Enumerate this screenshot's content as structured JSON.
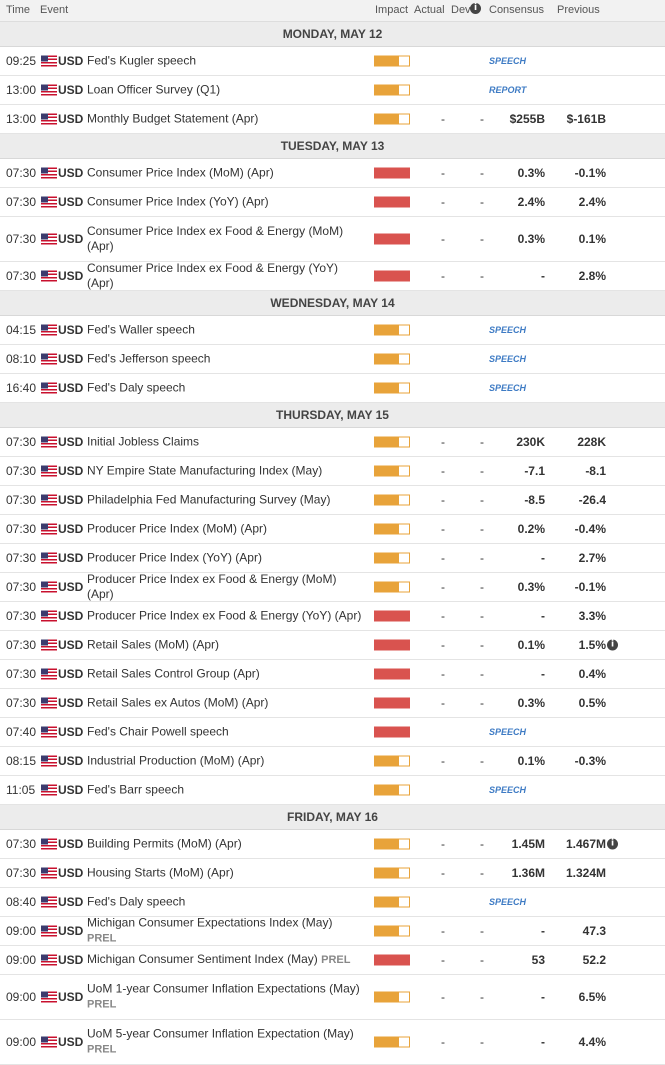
{
  "header": {
    "time": "Time",
    "event": "Event",
    "impact": "Impact",
    "actual": "Actual",
    "dev": "Dev",
    "consensus": "Consensus",
    "previous": "Previous"
  },
  "colors": {
    "impact_medium": "#e8a33a",
    "impact_high": "#d9534f",
    "tag": "#3e7bc4"
  },
  "days": [
    {
      "label": "MONDAY, MAY 12",
      "rows": [
        {
          "time": "09:25",
          "currency": "USD",
          "event": "Fed's Kugler speech",
          "impact": "medium",
          "tag": "SPEECH"
        },
        {
          "time": "13:00",
          "currency": "USD",
          "event": "Loan Officer Survey (Q1)",
          "impact": "medium",
          "tag": "REPORT"
        },
        {
          "time": "13:00",
          "currency": "USD",
          "event": "Monthly Budget Statement (Apr)",
          "impact": "medium",
          "actual": "-",
          "dev": "-",
          "consensus": "$255B",
          "previous": "$-161B"
        }
      ]
    },
    {
      "label": "TUESDAY, MAY 13",
      "rows": [
        {
          "time": "07:30",
          "currency": "USD",
          "event": "Consumer Price Index (MoM) (Apr)",
          "impact": "high",
          "actual": "-",
          "dev": "-",
          "consensus": "0.3%",
          "previous": "-0.1%"
        },
        {
          "time": "07:30",
          "currency": "USD",
          "event": "Consumer Price Index (YoY) (Apr)",
          "impact": "high",
          "actual": "-",
          "dev": "-",
          "consensus": "2.4%",
          "previous": "2.4%"
        },
        {
          "time": "07:30",
          "currency": "USD",
          "event": "Consumer Price Index ex Food & Energy (MoM) (Apr)",
          "impact": "high",
          "actual": "-",
          "dev": "-",
          "consensus": "0.3%",
          "previous": "0.1%",
          "tall": true
        },
        {
          "time": "07:30",
          "currency": "USD",
          "event": "Consumer Price Index ex Food & Energy (YoY) (Apr)",
          "impact": "high",
          "actual": "-",
          "dev": "-",
          "consensus": "-",
          "previous": "2.8%"
        }
      ]
    },
    {
      "label": "WEDNESDAY, MAY 14",
      "rows": [
        {
          "time": "04:15",
          "currency": "USD",
          "event": "Fed's Waller speech",
          "impact": "medium",
          "tag": "SPEECH"
        },
        {
          "time": "08:10",
          "currency": "USD",
          "event": "Fed's Jefferson speech",
          "impact": "medium",
          "tag": "SPEECH"
        },
        {
          "time": "16:40",
          "currency": "USD",
          "event": "Fed's Daly speech",
          "impact": "medium",
          "tag": "SPEECH"
        }
      ]
    },
    {
      "label": "THURSDAY, MAY 15",
      "rows": [
        {
          "time": "07:30",
          "currency": "USD",
          "event": "Initial Jobless Claims",
          "impact": "medium",
          "actual": "-",
          "dev": "-",
          "consensus": "230K",
          "previous": "228K"
        },
        {
          "time": "07:30",
          "currency": "USD",
          "event": "NY Empire State Manufacturing Index (May)",
          "impact": "medium",
          "actual": "-",
          "dev": "-",
          "consensus": "-7.1",
          "previous": "-8.1"
        },
        {
          "time": "07:30",
          "currency": "USD",
          "event": "Philadelphia Fed Manufacturing Survey (May)",
          "impact": "medium",
          "actual": "-",
          "dev": "-",
          "consensus": "-8.5",
          "previous": "-26.4"
        },
        {
          "time": "07:30",
          "currency": "USD",
          "event": "Producer Price Index (MoM) (Apr)",
          "impact": "medium",
          "actual": "-",
          "dev": "-",
          "consensus": "0.2%",
          "previous": "-0.4%"
        },
        {
          "time": "07:30",
          "currency": "USD",
          "event": "Producer Price Index (YoY) (Apr)",
          "impact": "medium",
          "actual": "-",
          "dev": "-",
          "consensus": "-",
          "previous": "2.7%"
        },
        {
          "time": "07:30",
          "currency": "USD",
          "event": "Producer Price Index ex Food & Energy (MoM) (Apr)",
          "impact": "medium",
          "actual": "-",
          "dev": "-",
          "consensus": "0.3%",
          "previous": "-0.1%"
        },
        {
          "time": "07:30",
          "currency": "USD",
          "event": "Producer Price Index ex Food & Energy (YoY) (Apr)",
          "impact": "high",
          "actual": "-",
          "dev": "-",
          "consensus": "-",
          "previous": "3.3%"
        },
        {
          "time": "07:30",
          "currency": "USD",
          "event": "Retail Sales (MoM) (Apr)",
          "impact": "high",
          "actual": "-",
          "dev": "-",
          "consensus": "0.1%",
          "previous": "1.5%",
          "revised": true
        },
        {
          "time": "07:30",
          "currency": "USD",
          "event": "Retail Sales Control Group (Apr)",
          "impact": "high",
          "actual": "-",
          "dev": "-",
          "consensus": "-",
          "previous": "0.4%"
        },
        {
          "time": "07:30",
          "currency": "USD",
          "event": "Retail Sales ex Autos (MoM) (Apr)",
          "impact": "high",
          "actual": "-",
          "dev": "-",
          "consensus": "0.3%",
          "previous": "0.5%"
        },
        {
          "time": "07:40",
          "currency": "USD",
          "event": "Fed's Chair Powell speech",
          "impact": "high",
          "tag": "SPEECH"
        },
        {
          "time": "08:15",
          "currency": "USD",
          "event": "Industrial Production (MoM) (Apr)",
          "impact": "medium",
          "actual": "-",
          "dev": "-",
          "consensus": "0.1%",
          "previous": "-0.3%"
        },
        {
          "time": "11:05",
          "currency": "USD",
          "event": "Fed's Barr speech",
          "impact": "medium",
          "tag": "SPEECH"
        }
      ]
    },
    {
      "label": "FRIDAY, MAY 16",
      "rows": [
        {
          "time": "07:30",
          "currency": "USD",
          "event": "Building Permits (MoM) (Apr)",
          "impact": "medium",
          "actual": "-",
          "dev": "-",
          "consensus": "1.45M",
          "previous": "1.467M",
          "revised": true
        },
        {
          "time": "07:30",
          "currency": "USD",
          "event": "Housing Starts (MoM) (Apr)",
          "impact": "medium",
          "actual": "-",
          "dev": "-",
          "consensus": "1.36M",
          "previous": "1.324M"
        },
        {
          "time": "08:40",
          "currency": "USD",
          "event": "Fed's Daly speech",
          "impact": "medium",
          "tag": "SPEECH"
        },
        {
          "time": "09:00",
          "currency": "USD",
          "event": "Michigan Consumer Expectations Index (May)",
          "prel": "PREL",
          "impact": "medium",
          "actual": "-",
          "dev": "-",
          "consensus": "-",
          "previous": "47.3"
        },
        {
          "time": "09:00",
          "currency": "USD",
          "event": "Michigan Consumer Sentiment Index (May)",
          "prel": "PREL",
          "impact": "high",
          "actual": "-",
          "dev": "-",
          "consensus": "53",
          "previous": "52.2"
        },
        {
          "time": "09:00",
          "currency": "USD",
          "event": "UoM 1-year Consumer Inflation Expectations (May)",
          "prel": "PREL",
          "prel_newline": true,
          "impact": "medium",
          "actual": "-",
          "dev": "-",
          "consensus": "-",
          "previous": "6.5%",
          "tall": true
        },
        {
          "time": "09:00",
          "currency": "USD",
          "event": "UoM 5-year Consumer Inflation Expectation (May)",
          "prel": "PREL",
          "prel_newline": true,
          "impact": "medium",
          "actual": "-",
          "dev": "-",
          "consensus": "-",
          "previous": "4.4%",
          "tall": true
        }
      ]
    }
  ]
}
